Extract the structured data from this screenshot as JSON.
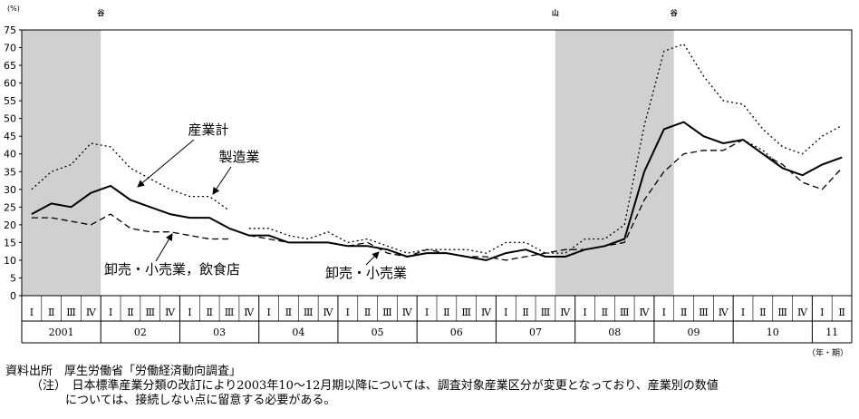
{
  "chart_data": {
    "type": "line",
    "y_unit_label": "(%)",
    "x_unit_label": "（年・期）",
    "ylim": [
      0,
      75
    ],
    "y_ticks": [
      0,
      5,
      10,
      15,
      20,
      25,
      30,
      35,
      40,
      45,
      50,
      55,
      60,
      65,
      70,
      75
    ],
    "quarter_labels": [
      "Ⅰ",
      "Ⅱ",
      "Ⅲ",
      "Ⅳ"
    ],
    "year_labels": [
      "2001",
      "02",
      "03",
      "04",
      "05",
      "06",
      "07",
      "08",
      "09",
      "10",
      "11"
    ],
    "quarters_per_year": [
      4,
      4,
      4,
      4,
      4,
      4,
      4,
      4,
      4,
      4,
      2
    ],
    "shaded_periods": [
      {
        "start": 0,
        "end": 4
      },
      {
        "start": 27,
        "end": 33
      }
    ],
    "cycle_markers": [
      {
        "label": "谷",
        "at": 4
      },
      {
        "label": "山",
        "at": 27
      },
      {
        "label": "谷",
        "at": 33
      }
    ],
    "series": [
      {
        "name": "産業計",
        "style": "solid",
        "values": [
          23,
          26,
          25,
          29,
          31,
          27,
          25,
          23,
          22,
          22,
          19,
          17,
          17,
          15,
          15,
          15,
          14,
          14,
          13,
          11,
          12,
          12,
          11,
          10,
          12,
          13,
          11,
          11,
          13,
          14,
          16,
          35,
          47,
          49,
          45,
          43,
          44,
          40,
          36,
          34,
          37,
          39
        ]
      },
      {
        "name": "製造業",
        "style": "dotted",
        "values": [
          30,
          35,
          37,
          43,
          42,
          36,
          33,
          30,
          28,
          28,
          24,
          null,
          null,
          null,
          null,
          null,
          null,
          null,
          null,
          null,
          null,
          null,
          null,
          null,
          null,
          null,
          null,
          null,
          null,
          null,
          null,
          null,
          null,
          null,
          null,
          null,
          44,
          41,
          36,
          34,
          37,
          39
        ]
      },
      {
        "name": "卸売・小売業，飲食店",
        "style": "dashed",
        "values": [
          22,
          22,
          21,
          20,
          23,
          19,
          18,
          18,
          17,
          16,
          16,
          null,
          null,
          null,
          null,
          null,
          null,
          null,
          null,
          null,
          null,
          null,
          null,
          null,
          null,
          null,
          null,
          null,
          null,
          null,
          null,
          null,
          null,
          null,
          null,
          null,
          null,
          null,
          null,
          null,
          null,
          null
        ]
      },
      {
        "name": "製造業",
        "style": "dotted",
        "values": [
          null,
          null,
          null,
          null,
          null,
          null,
          null,
          null,
          null,
          null,
          null,
          19,
          19,
          17,
          16,
          18,
          15,
          16,
          14,
          12,
          13,
          13,
          13,
          12,
          15,
          15,
          12,
          12,
          16,
          16,
          20,
          48,
          69,
          71,
          62,
          55,
          54,
          47,
          42,
          40,
          45,
          48
        ]
      },
      {
        "name": "卸売・小売業",
        "style": "dashed",
        "values": [
          null,
          null,
          null,
          null,
          null,
          null,
          null,
          null,
          null,
          null,
          null,
          17,
          16,
          15,
          15,
          15,
          14,
          15,
          12,
          11,
          13,
          12,
          11,
          11,
          10,
          11,
          12,
          13,
          13,
          14,
          15,
          27,
          35,
          40,
          41,
          41,
          44,
          40,
          37,
          32,
          30,
          36
        ]
      }
    ],
    "annotations": [
      {
        "text": "産業計",
        "series": 0
      },
      {
        "text": "製造業",
        "series": 1
      },
      {
        "text": "卸売・小売業，飲食店",
        "series": 2
      },
      {
        "text": "卸売・小売業",
        "series": 4
      }
    ]
  },
  "notes": {
    "source": "資料出所　厚生労働省「労働経済動向調査」",
    "note_1": "（注）　日本標準産業分類の改訂により2003年10〜12月期以降については、調査対象産業区分が変更となっており、産業別の数値",
    "note_2": "については、接続しない点に留意する必要がある。"
  }
}
